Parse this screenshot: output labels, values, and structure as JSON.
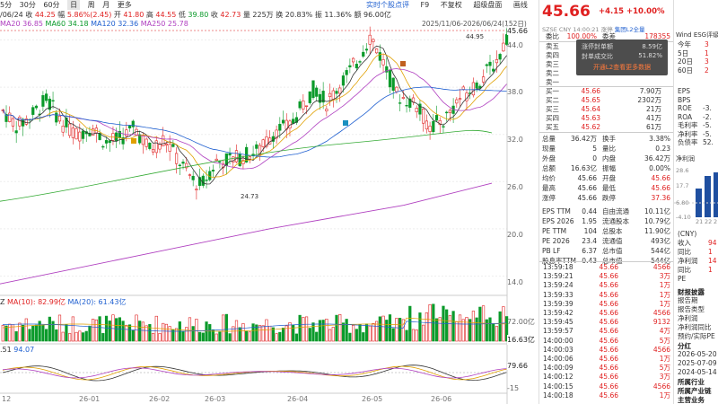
{
  "toolbar": {
    "periods": [
      "5分",
      "30分",
      "60分",
      "日",
      "周",
      "月",
      "更多"
    ],
    "active": "日",
    "right_items": [
      "实时个股点评",
      "F9",
      "不复权",
      "超级盘面",
      "画线",
      "工具"
    ]
  },
  "info_bar": {
    "date": "/06/24",
    "open_label": "收",
    "open": "44.25",
    "change_label": "幅",
    "change": "5.86%(2.45)",
    "high_label": "开",
    "high": "41.80",
    "high2_label": "高",
    "high2": "44.55",
    "low_label": "低",
    "low": "39.80",
    "prev_label": "收",
    "prev": "42.73",
    "vol_label": "量",
    "vol": "225万",
    "turn_label": "换",
    "turn": "20.83%",
    "amp_label": "振",
    "amp": "11.36%",
    "amt_label": "额",
    "amt": "96.00亿"
  },
  "ma_bar": {
    "ma20": "MA20 36.85",
    "ma60": "MA60 34.18",
    "ma120": "MA120 32.36",
    "ma250": "MA250 25.78"
  },
  "range_label": "2025/11/06-2026/06/24(152日)",
  "price_axis": [
    "45.66",
    "44.0",
    "38.0",
    "32.0",
    "26.0",
    "20.0",
    "14.0"
  ],
  "marks": {
    "high": "44.95",
    "low": "24.73"
  },
  "vol_bar": {
    "label": "Z",
    "ma10": "MA(10): 82.99亿",
    "ma20": "MA(20): 61.43亿",
    "axis_top": "72.00亿",
    "axis_cur": "16.63亿"
  },
  "macd_bar": {
    "label": ".51",
    "val": "94.07",
    "axis_top": "79.66",
    "axis_bot": "-15"
  },
  "x_axis": [
    "12",
    "26-01",
    "26-02",
    "26-03",
    "26-04",
    "26-05",
    "26-06"
  ],
  "quote": {
    "price": "45.66",
    "chg": "+4.15",
    "pct": "+10.00%",
    "market": "SZSE",
    "currency": "CNY",
    "time": "14:00:21",
    "status": "涨停",
    "tag": "集团L2全量"
  },
  "order_top": {
    "wei_bi_label": "委比",
    "wei_bi": "100.00%",
    "wei_cha_label": "委差",
    "wei_cha": "178355"
  },
  "overlay": {
    "l1": "涨停封单额",
    "v1": "8.59亿",
    "l2": "封单成交比",
    "v2": "51.82%",
    "btn": "开通L2查看更多数据"
  },
  "sell": [
    {
      "l": "卖五",
      "p": "",
      "v": ""
    },
    {
      "l": "卖四",
      "p": "",
      "v": ""
    },
    {
      "l": "卖三",
      "p": "",
      "v": ""
    },
    {
      "l": "卖二",
      "p": "",
      "v": ""
    },
    {
      "l": "卖一",
      "p": "",
      "v": ""
    }
  ],
  "buy": [
    {
      "l": "买一",
      "p": "45.66",
      "v": "7.90万"
    },
    {
      "l": "买二",
      "p": "45.65",
      "v": "2302万"
    },
    {
      "l": "买三",
      "p": "45.64",
      "v": "21万"
    },
    {
      "l": "买四",
      "p": "45.63",
      "v": "41万"
    },
    {
      "l": "买五",
      "p": "45.62",
      "v": "61万"
    }
  ],
  "stats": [
    {
      "a": "总量",
      "b": "36.42万",
      "c": "换手",
      "d": "3.38%"
    },
    {
      "a": "现量",
      "b": "5",
      "c": "量比",
      "d": "0.23"
    },
    {
      "a": "外盘",
      "b": "0",
      "c": "内盘",
      "d": "36.42万"
    },
    {
      "a": "总额",
      "b": "16.63亿",
      "c": "振幅",
      "d": "0.00%"
    },
    {
      "a": "均价",
      "b": "45.66",
      "c": "开盘",
      "d": "45.66"
    },
    {
      "a": "最高",
      "b": "45.66",
      "c": "最低",
      "d": "45.66"
    },
    {
      "a": "涨停",
      "b": "45.66",
      "c": "跌停",
      "d": "37.36"
    },
    {
      "a": "EPS TTM",
      "b": "0.44",
      "c": "自由流通",
      "d": "10.11亿"
    },
    {
      "a": "EPS 2026",
      "b": "1.95",
      "c": "流通股本",
      "d": "10.79亿"
    },
    {
      "a": "PE TTM",
      "b": "104",
      "c": "总股本",
      "d": "11.90亿"
    },
    {
      "a": "PE 2026",
      "b": "23.4",
      "c": "流通值",
      "d": "493亿"
    },
    {
      "a": "PB LF",
      "b": "6.37",
      "c": "总市值",
      "d": "544亿"
    },
    {
      "a": "股息率TTM",
      "b": "0.43",
      "c": "总市值",
      "d": "544亿"
    }
  ],
  "ticks": [
    {
      "t": "13:59:18",
      "p": "45.66",
      "v": "4566"
    },
    {
      "t": "13:59:21",
      "p": "45.66",
      "v": "3万"
    },
    {
      "t": "13:59:24",
      "p": "45.66",
      "v": "1万"
    },
    {
      "t": "13:59:33",
      "p": "45.66",
      "v": "1万"
    },
    {
      "t": "13:59:39",
      "p": "45.66",
      "v": "1万"
    },
    {
      "t": "13:59:42",
      "p": "45.66",
      "v": "4566"
    },
    {
      "t": "13:59:45",
      "p": "45.66",
      "v": "9132"
    },
    {
      "t": "13:59:57",
      "p": "45.66",
      "v": "4万"
    },
    {
      "t": "14:00:00",
      "p": "45.66",
      "v": "5万"
    },
    {
      "t": "14:00:03",
      "p": "45.66",
      "v": "4566"
    },
    {
      "t": "14:00:06",
      "p": "45.66",
      "v": "1万"
    },
    {
      "t": "14:00:09",
      "p": "45.66",
      "v": "5万"
    },
    {
      "t": "14:00:12",
      "p": "45.66",
      "v": "3万"
    },
    {
      "t": "14:00:15",
      "p": "45.66",
      "v": "4566"
    },
    {
      "t": "14:00:18",
      "p": "45.66",
      "v": "1万"
    }
  ],
  "far": {
    "header": "Wind ESG评级",
    "rows": [
      {
        "a": "今年",
        "b": "3"
      },
      {
        "a": "5日",
        "b": "1"
      },
      {
        "a": "20日",
        "b": "3"
      },
      {
        "a": "60日",
        "b": "2"
      }
    ],
    "fin": [
      {
        "a": "EPS",
        "b": ""
      },
      {
        "a": "BPS",
        "b": ""
      },
      {
        "a": "ROE",
        "b": "-3."
      },
      {
        "a": "ROA",
        "b": "-2."
      },
      {
        "a": "毛利率",
        "b": "-5."
      },
      {
        "a": "净利率",
        "b": "-5."
      },
      {
        "a": "负债率",
        "b": "52."
      }
    ],
    "chart_title": "净利润",
    "chart_axis": [
      "28.6",
      "17.7",
      "6.80",
      "-4.10"
    ],
    "chart_x": [
      "21",
      "22",
      "2"
    ],
    "inc": [
      {
        "a": "(CNY)",
        "b": ""
      },
      {
        "a": "收入",
        "b": "94"
      },
      {
        "a": "同比",
        "b": "1"
      },
      {
        "a": "净利润",
        "b": "14"
      },
      {
        "a": "同比",
        "b": "1"
      },
      {
        "a": "PE",
        "b": ""
      }
    ],
    "report_title": "财报披露",
    "report": [
      "报告期",
      "报告类型",
      "净利润",
      "净利润同比",
      "预约/实际PE"
    ],
    "dividend_title": "分红",
    "dates": [
      "2026-05-20",
      "2025-07-09",
      "2024-05-14"
    ],
    "industry": [
      "所属行业",
      "所属产业链",
      "主营业务"
    ]
  }
}
